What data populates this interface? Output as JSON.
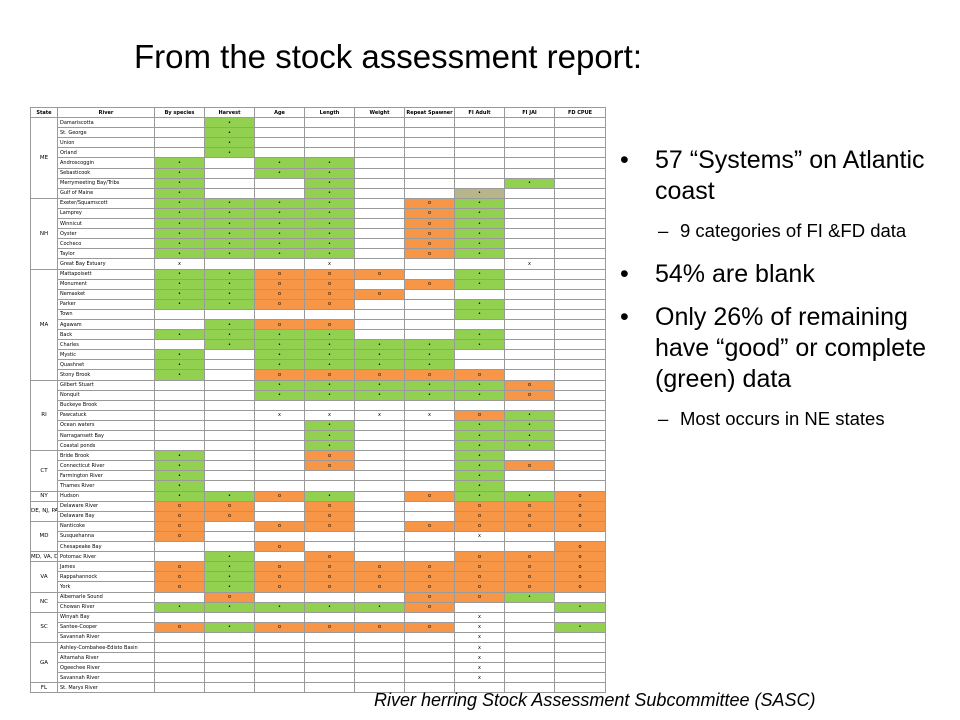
{
  "title": "From the stock assessment report:",
  "table": {
    "headers": [
      "State",
      "River",
      "By species",
      "Harvest",
      "Age",
      "Length",
      "Weight",
      "Repeat Spawner",
      "FI Adult",
      "FI JAI",
      "FD CPUE"
    ],
    "groups": [
      {
        "state": "ME",
        "rivers": [
          [
            "Damariscotta",
            "",
            "g",
            "",
            "",
            "",
            "",
            "",
            "",
            ""
          ],
          [
            "St. George",
            "",
            "g",
            "",
            "",
            "",
            "",
            "",
            "",
            ""
          ],
          [
            "Union",
            "",
            "g",
            "",
            "",
            "",
            "",
            "",
            "",
            ""
          ],
          [
            "Orland",
            "",
            "g",
            "",
            "",
            "",
            "",
            "",
            "",
            ""
          ],
          [
            "Androscoggin",
            "g",
            "",
            "g",
            "g",
            "",
            "",
            "",
            "",
            ""
          ],
          [
            "Sebasticook",
            "g",
            "",
            "g",
            "g",
            "",
            "",
            "",
            "",
            ""
          ],
          [
            "Merrymeeting Bay/Tribs",
            "g",
            "",
            "",
            "g",
            "",
            "",
            "",
            "g",
            ""
          ],
          [
            "Gulf of Maine",
            "g",
            "",
            "",
            "g",
            "",
            "",
            "k",
            "",
            ""
          ]
        ]
      },
      {
        "state": "NH",
        "rivers": [
          [
            "Exeter/Squamscott",
            "g",
            "g",
            "g",
            "g",
            "",
            "o",
            "g",
            "",
            ""
          ],
          [
            "Lamprey",
            "g",
            "g",
            "g",
            "g",
            "",
            "o",
            "g",
            "",
            ""
          ],
          [
            "Winnicut",
            "g",
            "g",
            "g",
            "g",
            "",
            "o",
            "g",
            "",
            ""
          ],
          [
            "Oyster",
            "g",
            "g",
            "g",
            "g",
            "",
            "o",
            "g",
            "",
            ""
          ],
          [
            "Cocheco",
            "g",
            "g",
            "g",
            "g",
            "",
            "o",
            "g",
            "",
            ""
          ],
          [
            "Taylor",
            "g",
            "g",
            "g",
            "g",
            "",
            "o",
            "g",
            "",
            ""
          ],
          [
            "Great Bay Estuary",
            "x",
            "",
            "",
            "x",
            "",
            "",
            "",
            "x",
            ""
          ]
        ]
      },
      {
        "state": "MA",
        "rivers": [
          [
            "Mattapoisett",
            "g",
            "g",
            "o",
            "o",
            "o",
            "",
            "g",
            "",
            ""
          ],
          [
            "Monument",
            "g",
            "g",
            "o",
            "o",
            "",
            "o",
            "g",
            "",
            ""
          ],
          [
            "Nemasket",
            "g",
            "g",
            "o",
            "o",
            "o",
            "",
            "",
            "",
            ""
          ],
          [
            "Parker",
            "g",
            "g",
            "o",
            "o",
            "",
            "",
            "g",
            "",
            ""
          ],
          [
            "Town",
            "",
            "",
            "",
            "",
            "",
            "",
            "g",
            "",
            ""
          ],
          [
            "Agawam",
            "",
            "g",
            "o",
            "o",
            "",
            "",
            "",
            "",
            ""
          ],
          [
            "Back",
            "g",
            "g",
            "g",
            "g",
            "",
            "",
            "g",
            "",
            ""
          ],
          [
            "Charles",
            "",
            "g",
            "g",
            "g",
            "g",
            "g",
            "g",
            "",
            ""
          ],
          [
            "Mystic",
            "g",
            "",
            "g",
            "g",
            "g",
            "g",
            "",
            "",
            ""
          ],
          [
            "Quashnet",
            "g",
            "",
            "g",
            "g",
            "g",
            "g",
            "",
            "",
            ""
          ],
          [
            "Stony Brook",
            "g",
            "",
            "o",
            "o",
            "o",
            "o",
            "o",
            "",
            ""
          ]
        ]
      },
      {
        "state": "RI",
        "rivers": [
          [
            "Gilbert Stuart",
            "",
            "",
            "g",
            "g",
            "g",
            "g",
            "g",
            "o",
            ""
          ],
          [
            "Nonquit",
            "",
            "",
            "g",
            "g",
            "g",
            "g",
            "g",
            "o",
            ""
          ],
          [
            "Buckeye Brook",
            "",
            "",
            "",
            "",
            "",
            "",
            "",
            "",
            ""
          ],
          [
            "Pawcatuck",
            "",
            "",
            "x",
            "x",
            "x",
            "x",
            "o",
            "g",
            ""
          ],
          [
            "Ocean waters",
            "",
            "",
            "",
            "g",
            "",
            "",
            "g",
            "g",
            ""
          ],
          [
            "Narragansett Bay",
            "",
            "",
            "",
            "g",
            "",
            "",
            "g",
            "g",
            ""
          ],
          [
            "Coastal ponds",
            "",
            "",
            "",
            "g",
            "",
            "",
            "g",
            "g",
            ""
          ]
        ]
      },
      {
        "state": "CT",
        "rivers": [
          [
            "Bride Brook",
            "g",
            "",
            "",
            "o",
            "",
            "",
            "g",
            "",
            ""
          ],
          [
            "Connecticut River",
            "g",
            "",
            "",
            "o",
            "",
            "",
            "g",
            "o",
            ""
          ],
          [
            "Farmington River",
            "g",
            "",
            "",
            "",
            "",
            "",
            "g",
            "",
            ""
          ],
          [
            "Thames River",
            "g",
            "",
            "",
            "",
            "",
            "",
            "g",
            "",
            ""
          ]
        ]
      },
      {
        "state": "NY",
        "rivers": [
          [
            "Hudson",
            "g",
            "g",
            "o",
            "g",
            "",
            "o",
            "g",
            "g",
            "o"
          ]
        ]
      },
      {
        "state": "DE, NJ, PA",
        "rivers": [
          [
            "Delaware River",
            "o",
            "o",
            "",
            "o",
            "",
            "",
            "o",
            "o",
            "o"
          ],
          [
            "Delaware Bay",
            "o",
            "o",
            "",
            "o",
            "",
            "",
            "o",
            "o",
            "o"
          ]
        ]
      },
      {
        "state": "MD",
        "rivers": [
          [
            "Nanticoke",
            "o",
            "",
            "o",
            "o",
            "",
            "o",
            "o",
            "o",
            "o"
          ],
          [
            "Susquehanna",
            "o",
            "",
            "",
            "",
            "",
            "",
            "x",
            "",
            ""
          ],
          [
            "Chesapeake Bay",
            "",
            "",
            "o",
            "",
            "",
            "",
            "",
            "",
            "o"
          ]
        ]
      },
      {
        "state": "MD, VA, DC",
        "rivers": [
          [
            "Potomac River",
            "",
            "g",
            "",
            "o",
            "",
            "",
            "o",
            "o",
            "o"
          ]
        ]
      },
      {
        "state": "VA",
        "rivers": [
          [
            "James",
            "o",
            "g",
            "o",
            "o",
            "o",
            "o",
            "o",
            "o",
            "o"
          ],
          [
            "Rappahannock",
            "o",
            "g",
            "o",
            "o",
            "o",
            "o",
            "o",
            "o",
            "o"
          ],
          [
            "York",
            "o",
            "g",
            "o",
            "o",
            "o",
            "o",
            "o",
            "o",
            "o"
          ]
        ]
      },
      {
        "state": "NC",
        "rivers": [
          [
            "Albemarle Sound",
            "",
            "o",
            "",
            "",
            "",
            "o",
            "o",
            "g",
            ""
          ],
          [
            "Chowan River",
            "g",
            "g",
            "g",
            "g",
            "g",
            "o",
            "",
            "",
            "g"
          ]
        ]
      },
      {
        "state": "SC",
        "rivers": [
          [
            "Winyah Bay",
            "",
            "",
            "",
            "",
            "",
            "",
            "x",
            "",
            ""
          ],
          [
            "Santee-Cooper",
            "o",
            "g",
            "o",
            "o",
            "o",
            "o",
            "x",
            "",
            "g"
          ],
          [
            "Savannah River",
            "",
            "",
            "",
            "",
            "",
            "",
            "x",
            "",
            ""
          ]
        ]
      },
      {
        "state": "GA",
        "rivers": [
          [
            "Ashley-Combahee-Edisto Basin",
            "",
            "",
            "",
            "",
            "",
            "",
            "x",
            "",
            ""
          ],
          [
            "Altamaha River",
            "",
            "",
            "",
            "",
            "",
            "",
            "x",
            "",
            ""
          ],
          [
            "Ogeechee River",
            "",
            "",
            "",
            "",
            "",
            "",
            "x",
            "",
            ""
          ],
          [
            "Savannah River",
            "",
            "",
            "",
            "",
            "",
            "",
            "x",
            "",
            ""
          ]
        ]
      },
      {
        "state": "FL",
        "rivers": [
          [
            "St. Marys River",
            "",
            "",
            "",
            "",
            "",
            "",
            "",
            "",
            ""
          ]
        ]
      }
    ]
  },
  "bullets": [
    {
      "text": "57 “Systems” on Atlantic coast",
      "sub": [
        "9 categories of FI &FD data"
      ]
    },
    {
      "text": "54% are blank",
      "sub": []
    },
    {
      "text": "Only 26% of remaining have “good” or complete (green) data",
      "sub": [
        "Most occurs in NE states"
      ]
    }
  ],
  "colors": {
    "green": "#92d050",
    "orange": "#f79646",
    "khaki": "#b7b58a"
  },
  "footer": "River herring Stock Assessment Subcommittee (SASC)"
}
